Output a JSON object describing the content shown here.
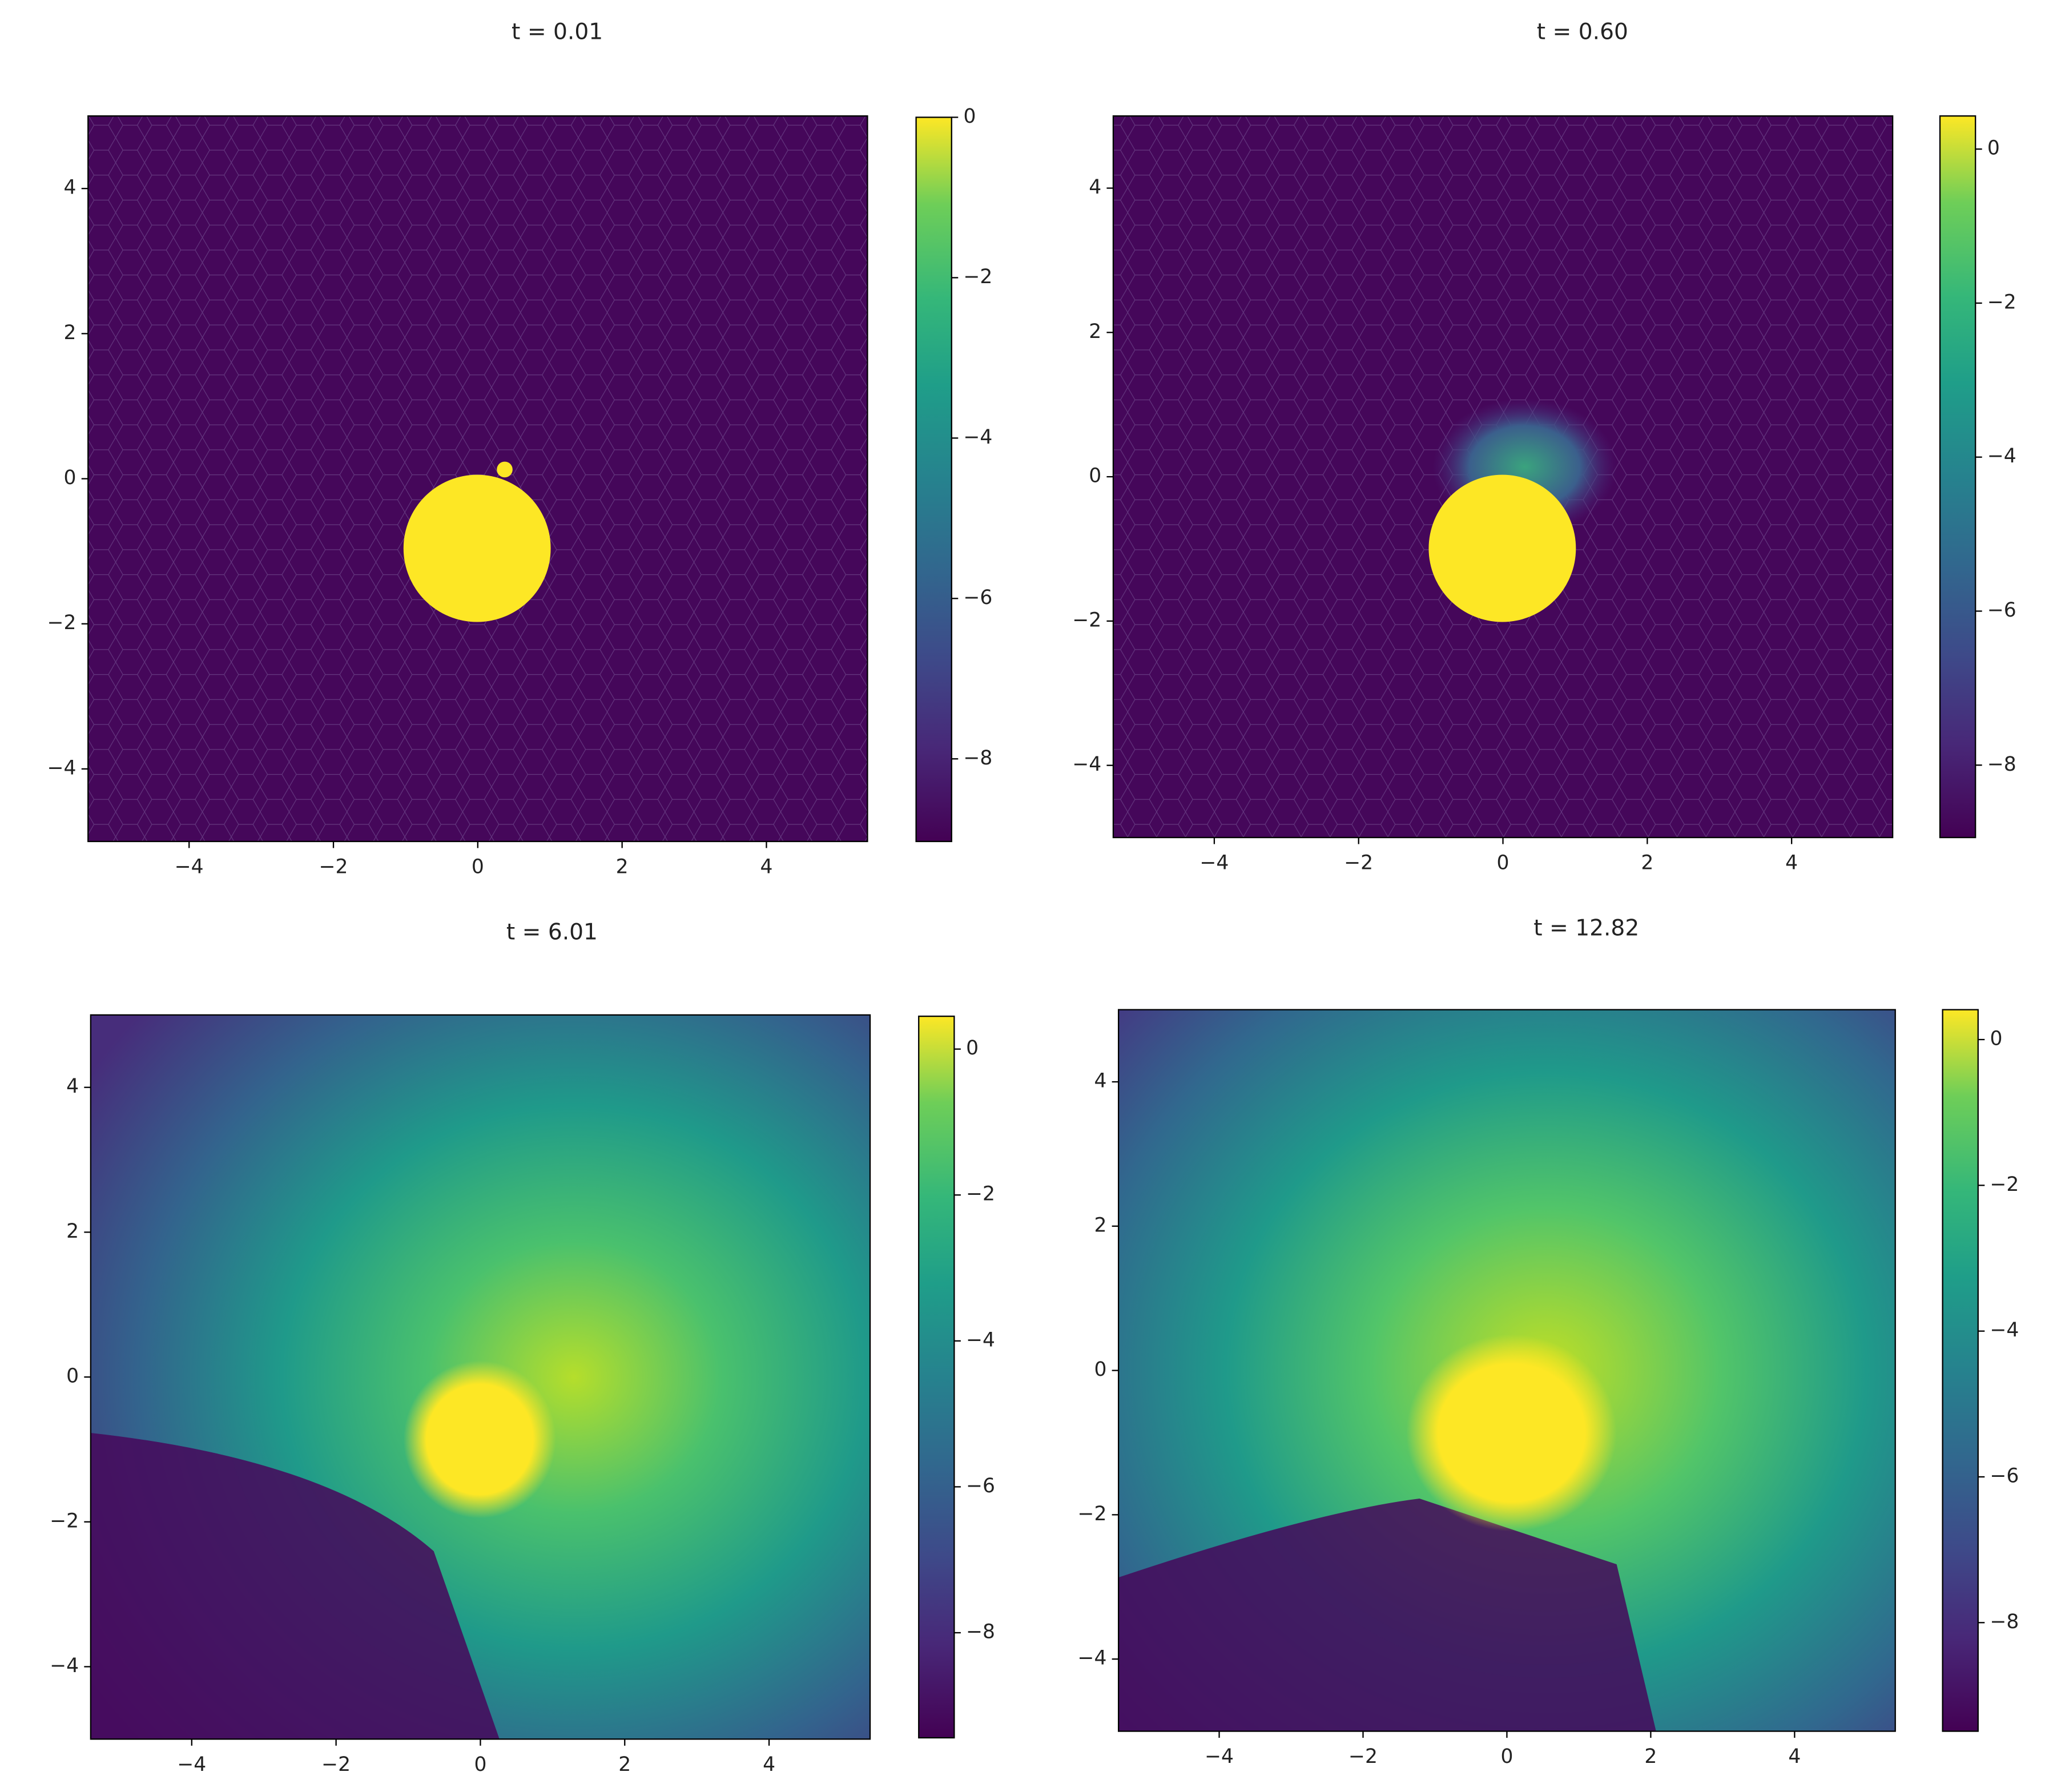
{
  "chart_data": [
    {
      "type": "heatmap",
      "title": "t = 0.01",
      "xlim": [
        -5.4,
        5.4
      ],
      "ylim": [
        -5,
        5
      ],
      "xticks": [
        {
          "value": -4,
          "label": "−4"
        },
        {
          "value": -2,
          "label": "−2"
        },
        0,
        2,
        4
      ],
      "yticks": [
        {
          "value": -4,
          "label": "−4"
        },
        {
          "value": -2,
          "label": "−2"
        },
        0,
        2,
        4
      ],
      "colorbar": {
        "lim": [
          -9.03,
          0
        ],
        "ticks": [
          {
            "value": -8,
            "label": "−8"
          },
          {
            "value": -6,
            "label": "−6"
          },
          {
            "value": -4,
            "label": "−4"
          },
          {
            "value": -2,
            "label": "−2"
          },
          0
        ]
      }
    },
    {
      "type": "heatmap",
      "title": "t = 0.60",
      "xlim": [
        -5.4,
        5.4
      ],
      "ylim": [
        -5,
        5
      ],
      "xticks": [
        {
          "value": -4,
          "label": "−4"
        },
        {
          "value": -2,
          "label": "−2"
        },
        0,
        2,
        4
      ],
      "yticks": [
        {
          "value": -4,
          "label": "−4"
        },
        {
          "value": -2,
          "label": "−2"
        },
        0,
        2,
        4
      ],
      "colorbar": {
        "lim": [
          -8.94,
          0.43
        ],
        "ticks": [
          {
            "value": -8,
            "label": "−8"
          },
          {
            "value": -6,
            "label": "−6"
          },
          {
            "value": -4,
            "label": "−4"
          },
          {
            "value": -2,
            "label": "−2"
          },
          0
        ]
      }
    },
    {
      "type": "heatmap",
      "title": "t = 6.01",
      "xlim": [
        -5.4,
        5.4
      ],
      "ylim": [
        -5,
        5
      ],
      "xticks": [
        {
          "value": -4,
          "label": "−4"
        },
        {
          "value": -2,
          "label": "−2"
        },
        0,
        2,
        4
      ],
      "yticks": [
        {
          "value": -4,
          "label": "−4"
        },
        {
          "value": -2,
          "label": "−2"
        },
        0,
        2,
        4
      ],
      "colorbar": {
        "lim": [
          -9.44,
          0.45
        ],
        "ticks": [
          {
            "value": -8,
            "label": "−8"
          },
          {
            "value": -6,
            "label": "−6"
          },
          {
            "value": -4,
            "label": "−4"
          },
          {
            "value": -2,
            "label": "−2"
          },
          0
        ]
      }
    },
    {
      "type": "heatmap",
      "title": "t = 12.82",
      "xlim": [
        -5.4,
        5.4
      ],
      "ylim": [
        -5,
        5
      ],
      "xticks": [
        {
          "value": -4,
          "label": "−4"
        },
        {
          "value": -2,
          "label": "−2"
        },
        0,
        2,
        4
      ],
      "yticks": [
        {
          "value": -4,
          "label": "−4"
        },
        {
          "value": -2,
          "label": "−2"
        },
        0,
        2,
        4
      ],
      "colorbar": {
        "lim": [
          -9.49,
          0.41
        ],
        "ticks": [
          {
            "value": -8,
            "label": "−8"
          },
          {
            "value": -6,
            "label": "−6"
          },
          {
            "value": -4,
            "label": "−4"
          },
          {
            "value": -2,
            "label": "−2"
          },
          0
        ]
      }
    }
  ]
}
